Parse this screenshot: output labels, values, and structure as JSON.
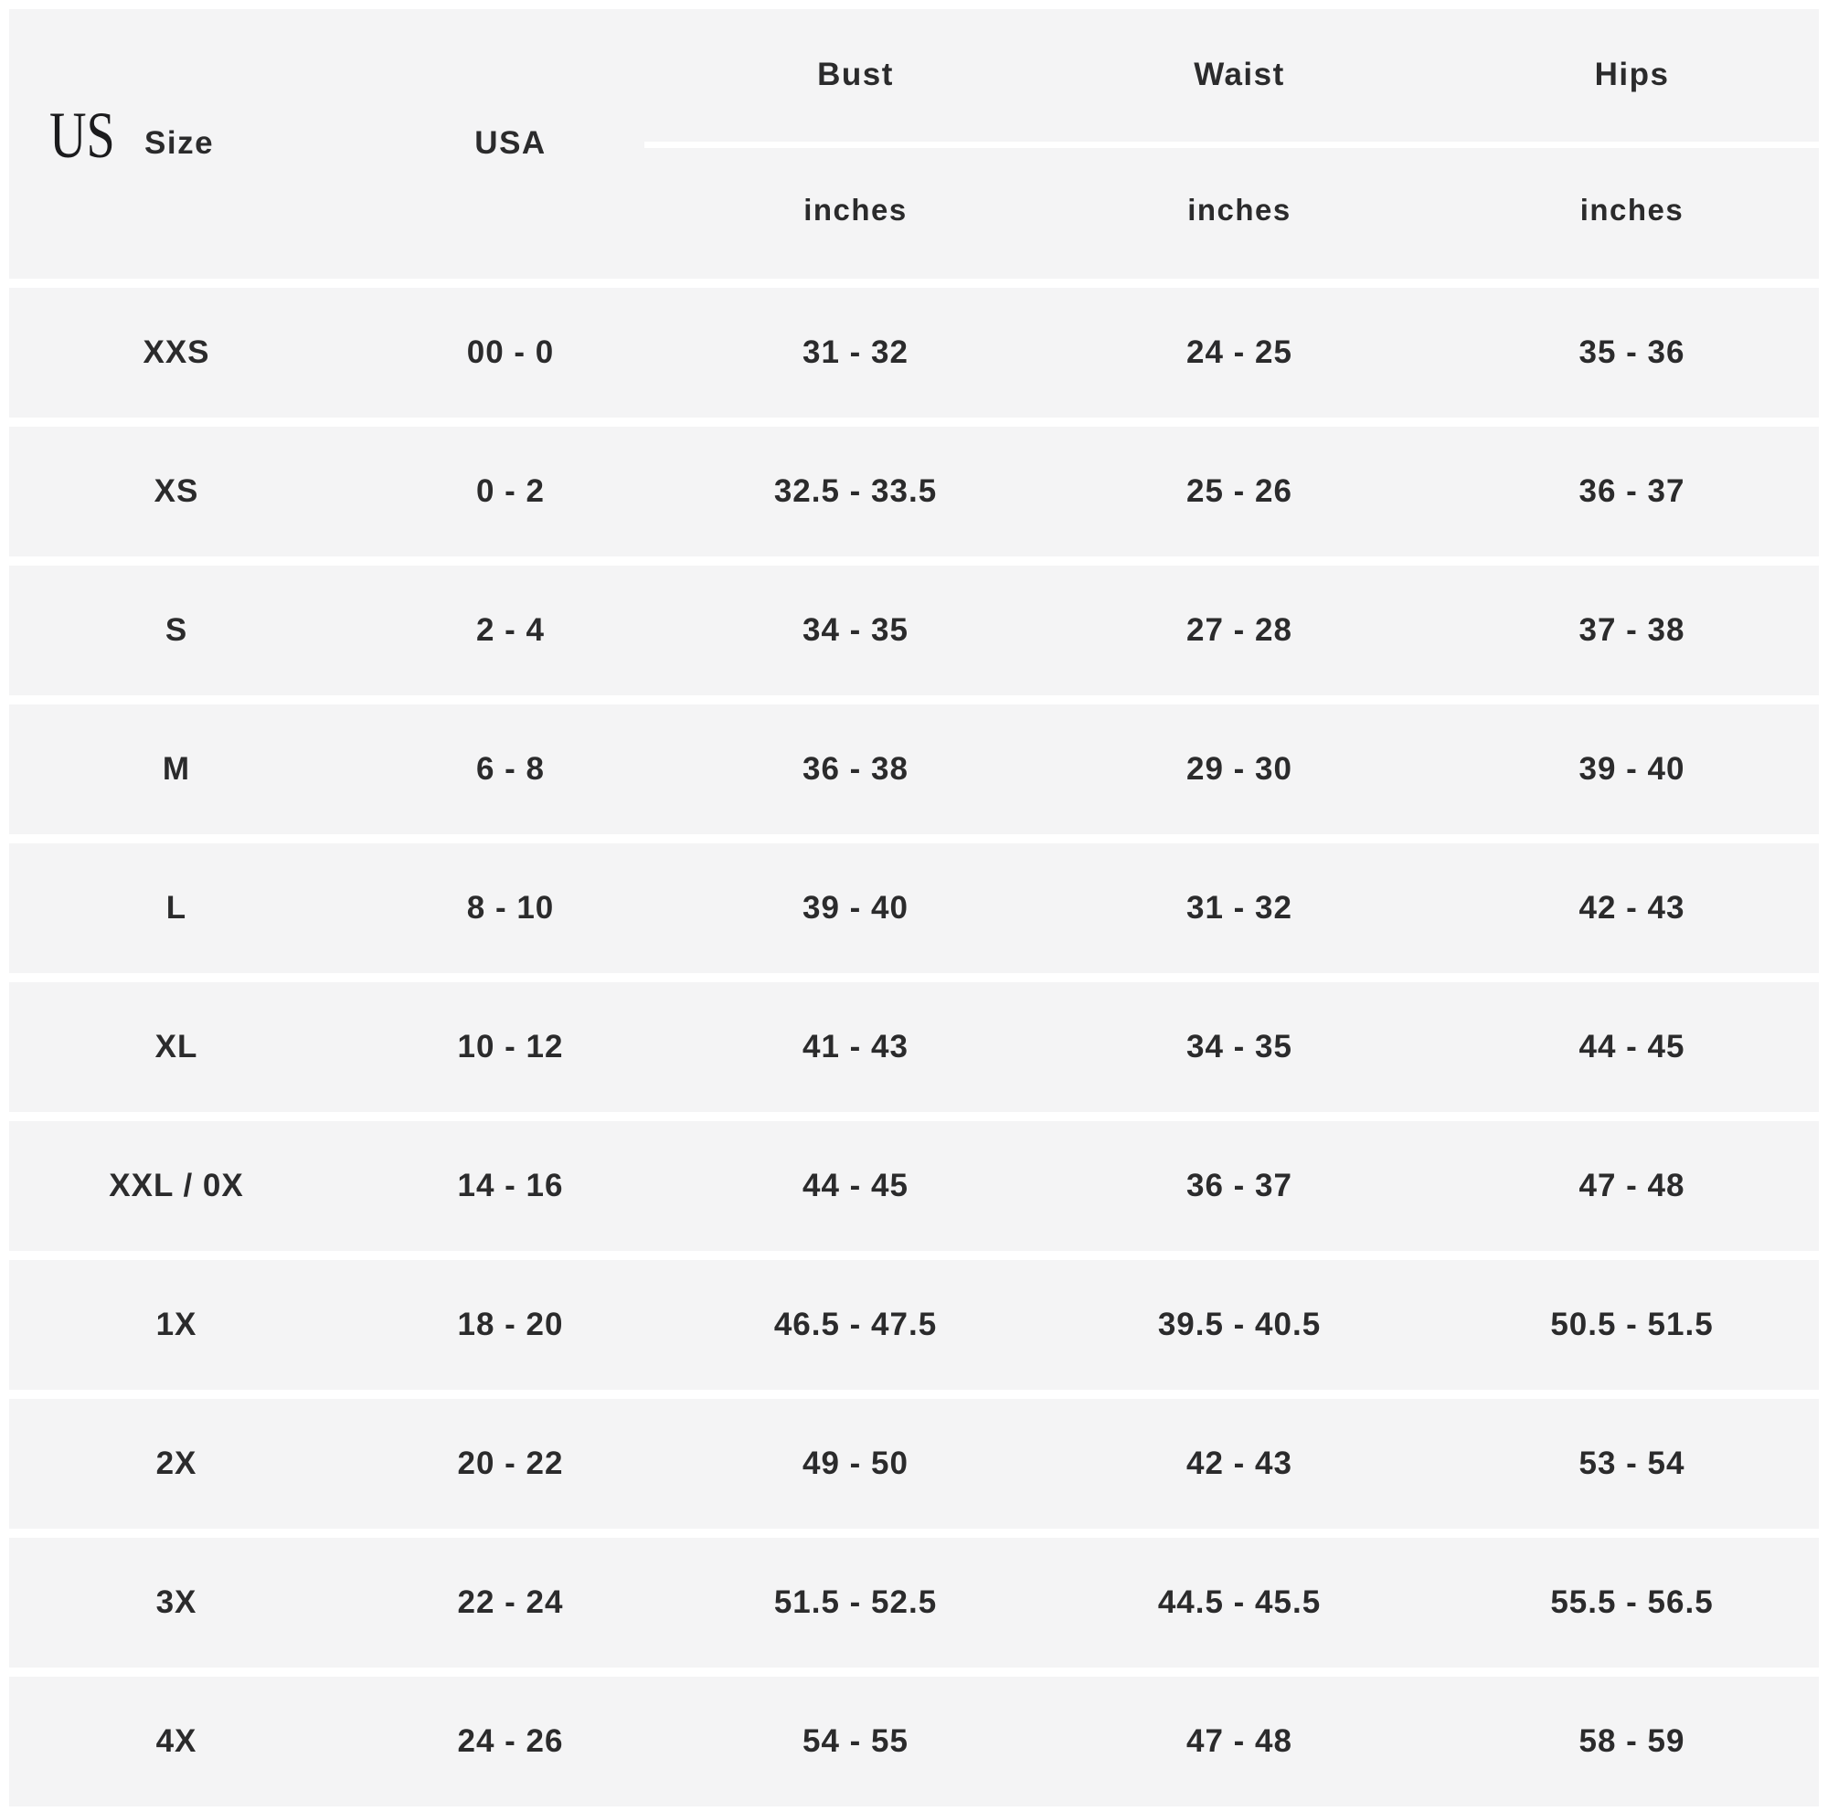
{
  "header": {
    "region_label": "US"
  },
  "table": {
    "columns": [
      {
        "label": "Size",
        "unit": ""
      },
      {
        "label": "USA",
        "unit": ""
      },
      {
        "label": "Bust",
        "unit": "inches"
      },
      {
        "label": "Waist",
        "unit": "inches"
      },
      {
        "label": "Hips",
        "unit": "inches"
      }
    ],
    "rows": [
      {
        "size": "XXS",
        "usa": "00 - 0",
        "bust": "31 - 32",
        "waist": "24 - 25",
        "hips": "35 - 36"
      },
      {
        "size": "XS",
        "usa": "0 - 2",
        "bust": "32.5 - 33.5",
        "waist": "25 - 26",
        "hips": "36 - 37"
      },
      {
        "size": "S",
        "usa": "2 - 4",
        "bust": "34 - 35",
        "waist": "27 - 28",
        "hips": "37 - 38"
      },
      {
        "size": "M",
        "usa": "6 - 8",
        "bust": "36 - 38",
        "waist": "29 - 30",
        "hips": "39 - 40"
      },
      {
        "size": "L",
        "usa": "8 - 10",
        "bust": "39 - 40",
        "waist": "31 - 32",
        "hips": "42 - 43"
      },
      {
        "size": "XL",
        "usa": "10 - 12",
        "bust": "41 - 43",
        "waist": "34 - 35",
        "hips": "44 - 45"
      },
      {
        "size": "XXL / 0X",
        "usa": "14 - 16",
        "bust": "44 - 45",
        "waist": "36 - 37",
        "hips": "47 - 48"
      },
      {
        "size": "1X",
        "usa": "18 - 20",
        "bust": "46.5 - 47.5",
        "waist": "39.5 - 40.5",
        "hips": "50.5 - 51.5"
      },
      {
        "size": "2X",
        "usa": "20 - 22",
        "bust": "49 - 50",
        "waist": "42 - 43",
        "hips": "53 - 54"
      },
      {
        "size": "3X",
        "usa": "22 - 24",
        "bust": "51.5 - 52.5",
        "waist": "44.5 - 45.5",
        "hips": "55.5 - 56.5"
      },
      {
        "size": "4X",
        "usa": "24 - 26",
        "bust": "54 - 55",
        "waist": "47 - 48",
        "hips": "58 - 59"
      }
    ]
  },
  "colors": {
    "table_background": "#f4f4f5",
    "separator": "#ffffff",
    "text": "#2b2b2c"
  }
}
